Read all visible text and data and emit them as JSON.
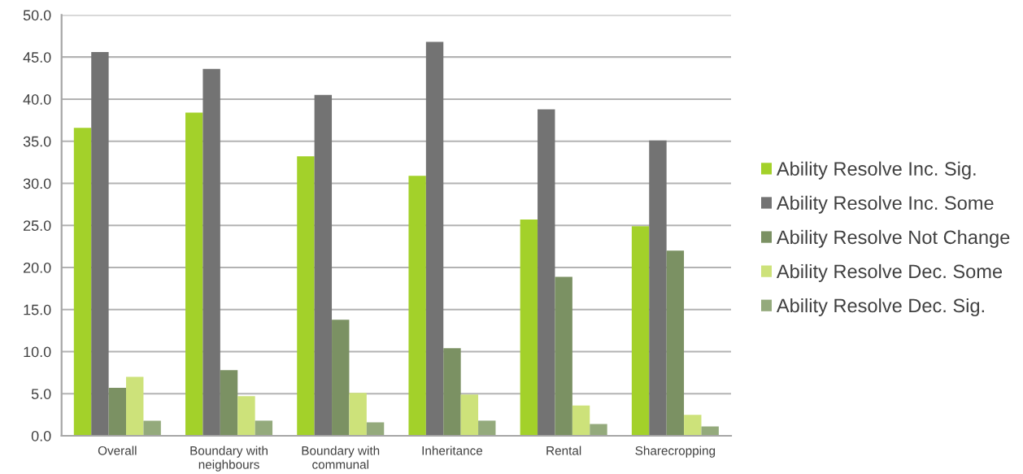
{
  "chart_data": {
    "type": "bar",
    "categories": [
      "Overall",
      "Boundary with neighbours",
      "Boundary with communal",
      "Inheritance",
      "Rental",
      "Sharecropping"
    ],
    "series": [
      {
        "name": "Ability Resolve Inc. Sig.",
        "color": "#a3d12a",
        "values": [
          36.6,
          38.4,
          33.2,
          30.9,
          25.7,
          24.9
        ]
      },
      {
        "name": "Ability Resolve Inc. Some",
        "color": "#737373",
        "values": [
          45.6,
          43.6,
          40.5,
          46.8,
          38.8,
          35.1
        ]
      },
      {
        "name": "Ability Resolve Not Change",
        "color": "#7b9163",
        "values": [
          5.7,
          7.8,
          13.8,
          10.4,
          18.9,
          22.0
        ]
      },
      {
        "name": "Ability Resolve Dec. Some",
        "color": "#cde27a",
        "values": [
          7.0,
          4.7,
          5.1,
          4.9,
          3.6,
          2.5
        ]
      },
      {
        "name": "Ability Resolve Dec. Sig.",
        "color": "#94aa7c",
        "values": [
          1.8,
          1.8,
          1.6,
          1.8,
          1.4,
          1.1
        ]
      }
    ],
    "ylim": [
      0,
      50
    ],
    "yticks": [
      {
        "value": 0,
        "label": "0.0"
      },
      {
        "value": 5,
        "label": "5.0"
      },
      {
        "value": 10,
        "label": "10.0"
      },
      {
        "value": 15,
        "label": "15.0"
      },
      {
        "value": 20,
        "label": "20.0"
      },
      {
        "value": 25,
        "label": "25.0"
      },
      {
        "value": 30,
        "label": "30.0"
      },
      {
        "value": 35,
        "label": "35.0"
      },
      {
        "value": 40,
        "label": "40.0"
      },
      {
        "value": 45,
        "label": "45.0"
      },
      {
        "value": 50,
        "label": "50.0"
      }
    ],
    "grid": "y",
    "legend": "right"
  }
}
